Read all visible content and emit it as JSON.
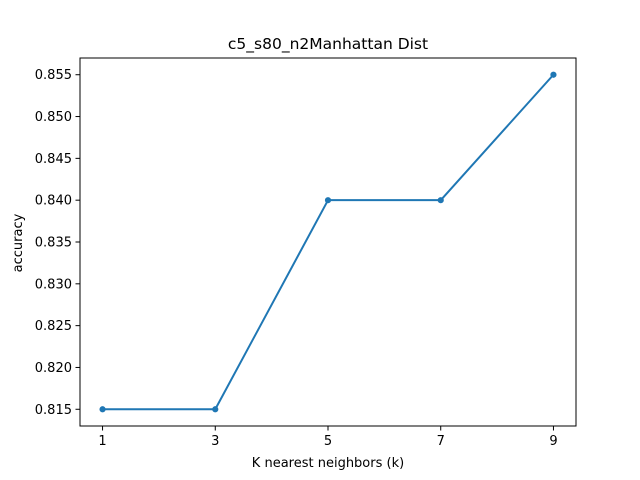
{
  "chart_data": {
    "type": "line",
    "title": "c5_s80_n2Manhattan Dist",
    "xlabel": "K nearest neighbors (k)",
    "ylabel": "accuracy",
    "x": [
      1,
      3,
      5,
      7,
      9
    ],
    "xticks": [
      "1",
      "3",
      "5",
      "7",
      "9"
    ],
    "yticks": [
      "0.815",
      "0.820",
      "0.825",
      "0.830",
      "0.835",
      "0.840",
      "0.845",
      "0.850",
      "0.855"
    ],
    "xlim": [
      0.6,
      9.4
    ],
    "ylim": [
      0.813,
      0.857
    ],
    "grid": false,
    "series": [
      {
        "values": [
          0.815,
          0.815,
          0.84,
          0.84,
          0.855
        ],
        "color": "#1f77b4",
        "marker": "circle"
      }
    ]
  }
}
